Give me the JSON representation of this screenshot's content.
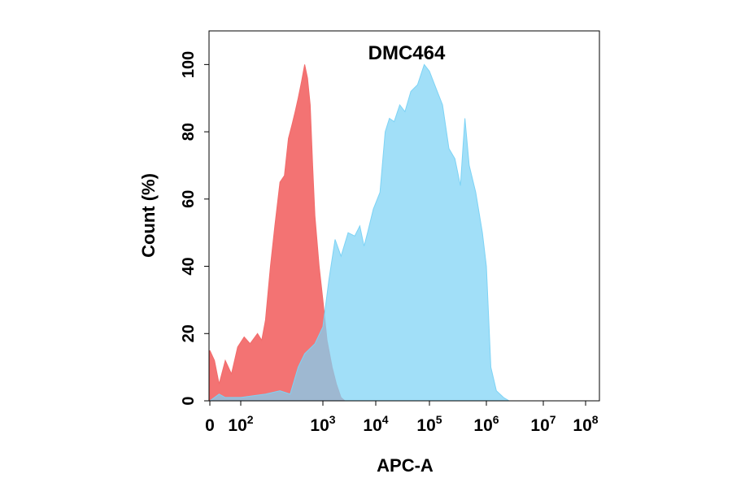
{
  "chart_data": {
    "type": "area",
    "title": "DMC464",
    "xlabel": "APC-A",
    "ylabel": "Count  (%)",
    "x_scale": "biexponential",
    "xlim": [
      0,
      100000000
    ],
    "ylim": [
      0,
      110
    ],
    "grid": false,
    "legend": "none",
    "x_tick_labels": [
      {
        "base": "0",
        "exp": ""
      },
      {
        "base": "10",
        "exp": "2"
      },
      {
        "base": "10",
        "exp": "3"
      },
      {
        "base": "10",
        "exp": "4"
      },
      {
        "base": "10",
        "exp": "5"
      },
      {
        "base": "10",
        "exp": "6"
      },
      {
        "base": "10",
        "exp": "7"
      },
      {
        "base": "10",
        "exp": "8"
      }
    ],
    "x_tick_values": [
      0,
      100,
      1000,
      10000,
      100000,
      1000000,
      10000000,
      100000000
    ],
    "y_ticks": [
      0,
      20,
      40,
      60,
      80,
      100
    ],
    "y_tick_labels": [
      "0",
      "20",
      "40",
      "60",
      "80",
      "100"
    ],
    "series": [
      {
        "color": "#f26b6b",
        "points": [
          [
            0,
            15
          ],
          [
            15,
            12
          ],
          [
            30,
            5
          ],
          [
            50,
            12
          ],
          [
            70,
            8
          ],
          [
            90,
            16
          ],
          [
            110,
            19
          ],
          [
            130,
            17
          ],
          [
            160,
            20
          ],
          [
            180,
            18
          ],
          [
            200,
            24
          ],
          [
            230,
            40
          ],
          [
            260,
            52
          ],
          [
            300,
            65
          ],
          [
            340,
            67
          ],
          [
            380,
            78
          ],
          [
            420,
            82
          ],
          [
            460,
            86
          ],
          [
            500,
            90
          ],
          [
            550,
            95
          ],
          [
            600,
            100
          ],
          [
            650,
            96
          ],
          [
            700,
            88
          ],
          [
            750,
            70
          ],
          [
            800,
            55
          ],
          [
            900,
            40
          ],
          [
            1000,
            30
          ],
          [
            1200,
            18
          ],
          [
            1500,
            10
          ],
          [
            1800,
            5
          ],
          [
            2200,
            1
          ],
          [
            2600,
            0
          ]
        ]
      },
      {
        "color": "#7dd3f5",
        "points": [
          [
            0,
            0
          ],
          [
            30,
            2
          ],
          [
            50,
            1
          ],
          [
            100,
            1
          ],
          [
            200,
            2
          ],
          [
            300,
            3
          ],
          [
            400,
            2
          ],
          [
            500,
            10
          ],
          [
            600,
            14
          ],
          [
            800,
            17
          ],
          [
            1000,
            22
          ],
          [
            1300,
            36
          ],
          [
            1700,
            48
          ],
          [
            2200,
            43
          ],
          [
            3000,
            50
          ],
          [
            4000,
            49
          ],
          [
            5000,
            52
          ],
          [
            6000,
            46
          ],
          [
            7000,
            50
          ],
          [
            9000,
            57
          ],
          [
            12000,
            62
          ],
          [
            15000,
            80
          ],
          [
            18000,
            84
          ],
          [
            22000,
            83
          ],
          [
            28000,
            88
          ],
          [
            35000,
            86
          ],
          [
            45000,
            92
          ],
          [
            60000,
            94
          ],
          [
            80000,
            100
          ],
          [
            100000,
            98
          ],
          [
            130000,
            93
          ],
          [
            170000,
            88
          ],
          [
            220000,
            75
          ],
          [
            280000,
            72
          ],
          [
            350000,
            64
          ],
          [
            420000,
            84
          ],
          [
            500000,
            70
          ],
          [
            650000,
            62
          ],
          [
            850000,
            50
          ],
          [
            1000000,
            40
          ],
          [
            1200000,
            10
          ],
          [
            1500000,
            3
          ],
          [
            2000000,
            1
          ],
          [
            2500000,
            0
          ]
        ]
      }
    ]
  }
}
